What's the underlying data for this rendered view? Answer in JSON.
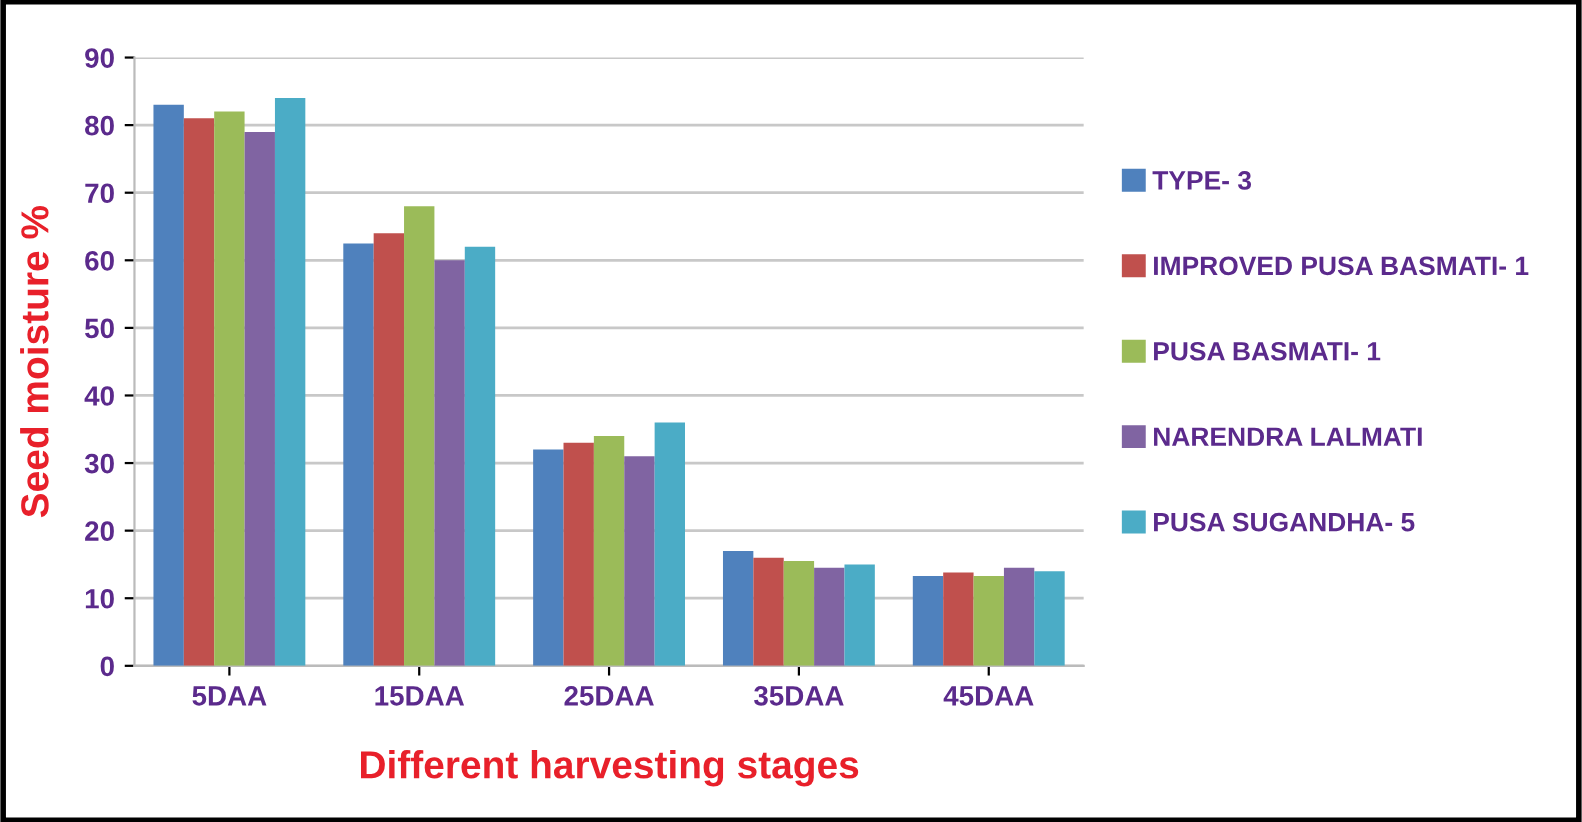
{
  "chart_data": {
    "type": "bar",
    "xlabel": "Different harvesting stages",
    "ylabel": "Seed moisture %",
    "categories": [
      "5DAA",
      "15DAA",
      "25DAA",
      "35DAA",
      "45DAA"
    ],
    "series": [
      {
        "name": "TYPE- 3",
        "color": "#4f81bd",
        "values": [
          83,
          62.5,
          32,
          17,
          13.3
        ]
      },
      {
        "name": "IMPROVED PUSA BASMATI- 1",
        "color": "#c0504d",
        "values": [
          81,
          64,
          33,
          16,
          13.8
        ]
      },
      {
        "name": "PUSA BASMATI- 1",
        "color": "#9bbb59",
        "values": [
          82,
          68,
          34,
          15.5,
          13.3
        ]
      },
      {
        "name": "NARENDRA LALMATI",
        "color": "#8064a2",
        "values": [
          79,
          60,
          31,
          14.5,
          14.5
        ]
      },
      {
        "name": "PUSA SUGANDHA- 5",
        "color": "#4bacc6",
        "values": [
          84,
          62,
          36,
          15,
          14
        ]
      }
    ],
    "ylim": [
      0,
      90
    ],
    "yticks": [
      0,
      10,
      20,
      30,
      40,
      50,
      60,
      70,
      80,
      90
    ],
    "grid": "y",
    "legend": "right"
  }
}
